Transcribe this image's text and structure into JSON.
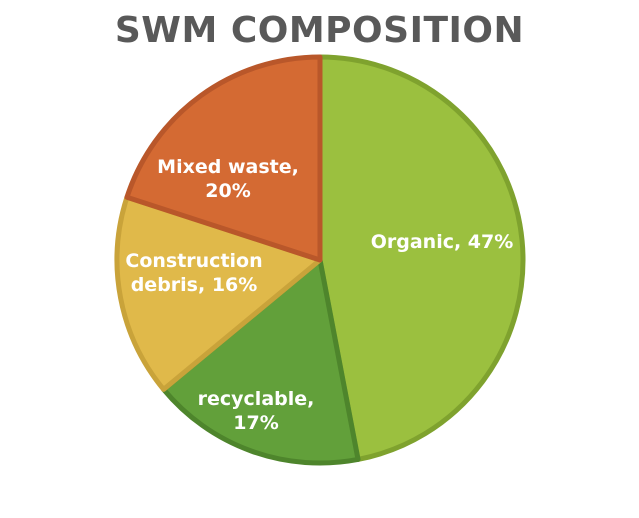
{
  "chart_data": {
    "type": "pie",
    "title": "SWM COMPOSITION",
    "slices": [
      {
        "name": "Organic",
        "value": 47,
        "label_lines": [
          "Organic, 47%"
        ],
        "color": "#9BC03F",
        "edge": "#7FA22E"
      },
      {
        "name": "recyclable",
        "value": 17,
        "label_lines": [
          "recyclable,",
          "17%"
        ],
        "color": "#62A03A",
        "edge": "#4E852C"
      },
      {
        "name": "Construction debris",
        "value": 16,
        "label_lines": [
          "Construction",
          "debris, 16%"
        ],
        "color": "#E0B94A",
        "edge": "#C9A33A"
      },
      {
        "name": "Mixed waste",
        "value": 20,
        "label_lines": [
          "Mixed waste,",
          "20%"
        ],
        "color": "#D46A33",
        "edge": "#B9572A"
      }
    ],
    "start_angle_deg": 0,
    "direction": "clockwise",
    "legend": "none",
    "labels": "inside"
  }
}
